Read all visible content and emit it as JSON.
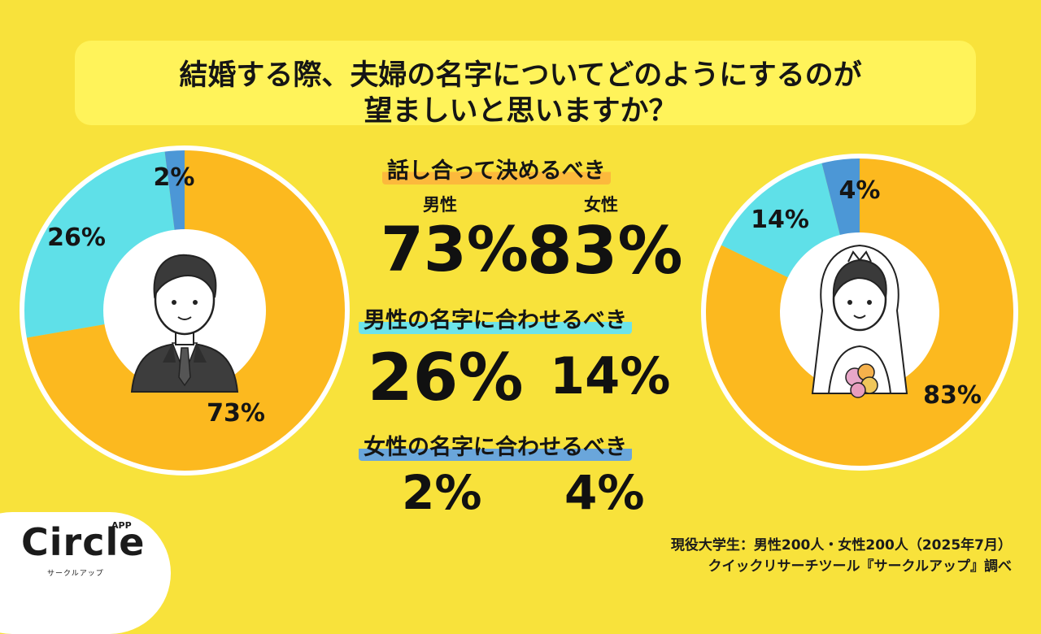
{
  "title": {
    "line1": "結婚する際、夫婦の名字についてどのようにするのが",
    "line2": "望ましいと思いますか？"
  },
  "categories": {
    "discuss": "話し合って決めるべき",
    "male_name": "男性の名字に合わせるべき",
    "female_name": "女性の名字に合わせるべき"
  },
  "gender_labels": {
    "male": "男性",
    "female": "女性"
  },
  "stats": {
    "discuss": {
      "male": "73%",
      "female": "83%"
    },
    "male_name": {
      "male": "26%",
      "female": "14%"
    },
    "female_name": {
      "male": "2%",
      "female": "4%"
    }
  },
  "source": {
    "line1": "現役大学生：男性200人・女性200人（2025年7月）",
    "line2": "クイックリサーチツール『サークルアップ』調べ"
  },
  "logo": {
    "name": "Circle",
    "badge": "APP",
    "sub": "サークルアップ"
  },
  "colors": {
    "background": "#F8E23B",
    "discuss": "#FCB91F",
    "male_name": "#5FE0E8",
    "female_name": "#4C97D6"
  },
  "chart_data": [
    {
      "type": "pie",
      "title": "男性",
      "categories": [
        "話し合って決めるべき",
        "男性の名字に合わせるべき",
        "女性の名字に合わせるべき"
      ],
      "values": [
        73,
        26,
        2
      ],
      "labels": [
        "73%",
        "26%",
        "2%"
      ],
      "colors": [
        "#FCB91F",
        "#5FE0E8",
        "#4C97D6"
      ]
    },
    {
      "type": "pie",
      "title": "女性",
      "categories": [
        "話し合って決めるべき",
        "男性の名字に合わせるべき",
        "女性の名字に合わせるべき"
      ],
      "values": [
        83,
        14,
        4
      ],
      "labels": [
        "83%",
        "14%",
        "4%"
      ],
      "colors": [
        "#FCB91F",
        "#5FE0E8",
        "#4C97D6"
      ]
    }
  ]
}
